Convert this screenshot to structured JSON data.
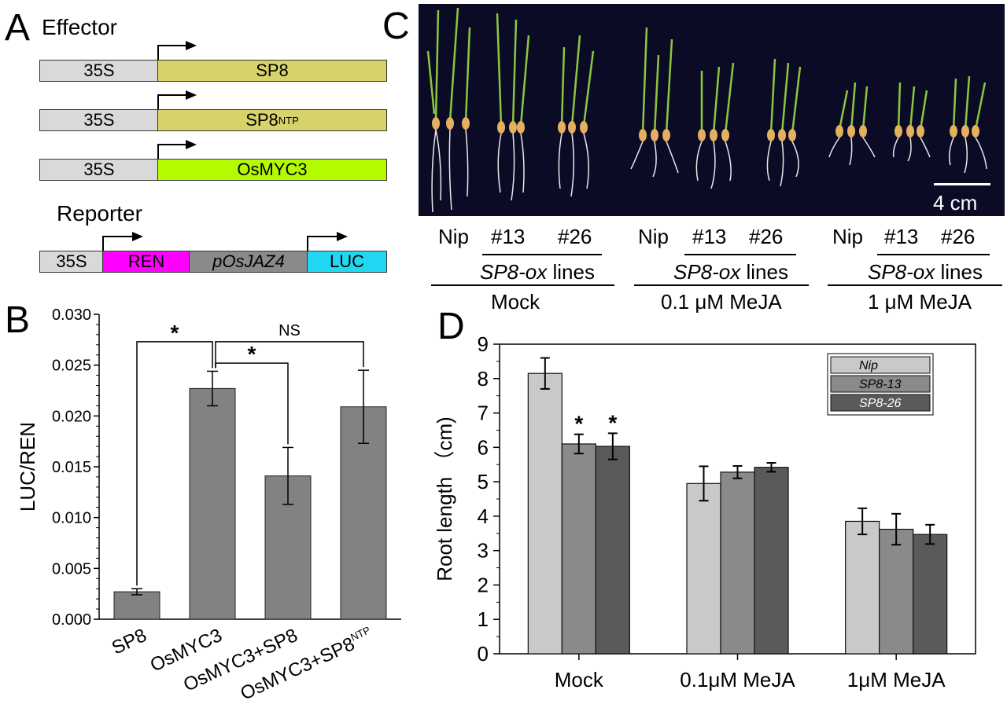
{
  "colors": {
    "gray": "#d9d9d9",
    "sp8": "#d7d36b",
    "osmyc3": "#b5fb00",
    "ren": "#ff00ff",
    "jaz4": "#8a8a8a",
    "luc": "#22d7f2",
    "photo_bg": "#0b0b26",
    "bar_dark": "#828282",
    "nip": "#c9c9c9",
    "sp8_13": "#8a8a8a",
    "sp8_26": "#5a5a5a"
  },
  "panelA": {
    "label": "A",
    "effector_title": "Effector",
    "reporter_title": "Reporter",
    "effector_rows": [
      {
        "promoter": "35S",
        "gene": "SP8",
        "sup": ""
      },
      {
        "promoter": "35S",
        "gene": "SP8",
        "sup": "NTP"
      },
      {
        "promoter": "35S",
        "gene": "OsMYC3",
        "sup": ""
      }
    ],
    "reporter": {
      "promoter": "35S",
      "ren": "REN",
      "jaz": "pOsJAZ4",
      "luc": "LUC"
    }
  },
  "panelC": {
    "label": "C",
    "scale_bar": "4 cm",
    "groups": [
      {
        "lines": [
          "Nip",
          "#13",
          "#26"
        ],
        "ox_italic": "SP8-ox",
        "ox_plain": " lines",
        "treatment": "Mock"
      },
      {
        "lines": [
          "Nip",
          "#13",
          "#26"
        ],
        "ox_italic": "SP8-ox",
        "ox_plain": " lines",
        "treatment": "0.1 μM MeJA"
      },
      {
        "lines": [
          "Nip",
          "#13",
          "#26"
        ],
        "ox_italic": "SP8-ox",
        "ox_plain": " lines",
        "treatment": "1 μM MeJA"
      }
    ]
  },
  "chart_data": [
    {
      "panel": "B",
      "type": "bar",
      "ylabel": "LUC/REN",
      "ylim": [
        0,
        0.03
      ],
      "yticks": [
        "0.000",
        "0.005",
        "0.010",
        "0.015",
        "0.020",
        "0.025",
        "0.030"
      ],
      "categories": [
        {
          "main": "SP8",
          "sup": ""
        },
        {
          "main": "OsMYC3",
          "sup": ""
        },
        {
          "main": "OsMYC3+SP8",
          "sup": ""
        },
        {
          "main": "OsMYC3+SP8",
          "sup": "NTP"
        }
      ],
      "values": [
        0.0027,
        0.0227,
        0.0141,
        0.0209
      ],
      "errors": [
        0.0003,
        0.0017,
        0.0028,
        0.0036
      ],
      "annotations": [
        {
          "from": 0,
          "to": 1,
          "text": "*"
        },
        {
          "from": 1,
          "to": 2,
          "text": "*"
        },
        {
          "from": 1,
          "to": 3,
          "text": "NS"
        }
      ]
    },
    {
      "panel": "D",
      "type": "bar",
      "ylabel": "Root length （cm)",
      "ylim": [
        0,
        9
      ],
      "yticks": [
        "0",
        "1",
        "2",
        "3",
        "4",
        "5",
        "6",
        "7",
        "8",
        "9"
      ],
      "categories": [
        "Mock",
        "0.1μM MeJA",
        "1μM MeJA"
      ],
      "series": [
        {
          "name": "Nip",
          "values": [
            8.15,
            4.95,
            3.85
          ],
          "errors": [
            0.45,
            0.5,
            0.38
          ]
        },
        {
          "name": "SP8-13",
          "values": [
            6.1,
            5.28,
            3.62
          ],
          "errors": [
            0.28,
            0.18,
            0.45
          ]
        },
        {
          "name": "SP8-26",
          "values": [
            6.03,
            5.42,
            3.47
          ],
          "errors": [
            0.38,
            0.13,
            0.28
          ]
        }
      ],
      "sig": [
        {
          "group": 0,
          "series": 1,
          "text": "*"
        },
        {
          "group": 0,
          "series": 2,
          "text": "*"
        }
      ]
    }
  ]
}
